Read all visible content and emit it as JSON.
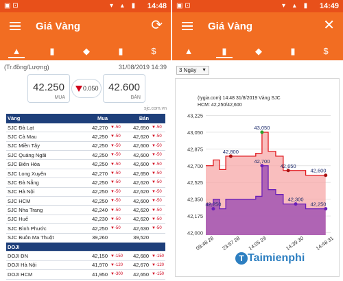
{
  "left": {
    "status": {
      "time": "14:48",
      "left_icons": "▣ ⊡",
      "right_icons": "▾ ▴ ▮"
    },
    "appbar": {
      "title": "Giá Vàng",
      "action_icon": "refresh-icon"
    },
    "tabs": [
      "gold-bars-icon",
      "chart-icon",
      "coin-pile-icon",
      "bar-chart-up-icon",
      "dollar-coins-icon"
    ],
    "unit_label": "(Tr.đồng/Lượng)",
    "timestamp": "31/08/2019 14:39",
    "summary": {
      "buy": "42.250",
      "buy_label": "MUA",
      "change": "0.050",
      "sell": "42.600",
      "sell_label": "BÁN"
    },
    "source": "sjc.com.vn",
    "table": {
      "headers": [
        "Vàng",
        "Mua",
        "Bán"
      ],
      "groups": [
        {
          "name": "",
          "rows": [
            {
              "name": "SJC Đà Lạt",
              "buy": "42,270",
              "buy_chg": "-50",
              "sell": "42,650",
              "sell_chg": "-50"
            },
            {
              "name": "SJC Cà Mau",
              "buy": "42,250",
              "buy_chg": "-50",
              "sell": "42,620",
              "sell_chg": "-50"
            },
            {
              "name": "SJC Miền Tây",
              "buy": "42,250",
              "buy_chg": "-50",
              "sell": "42,600",
              "sell_chg": "-50"
            },
            {
              "name": "SJC Quảng Ngãi",
              "buy": "42,250",
              "buy_chg": "-50",
              "sell": "42,600",
              "sell_chg": "-50"
            },
            {
              "name": "SJC Biên Hòa",
              "buy": "42,250",
              "buy_chg": "-50",
              "sell": "42,600",
              "sell_chg": "-50"
            },
            {
              "name": "SJC Long Xuyên",
              "buy": "42,270",
              "buy_chg": "-50",
              "sell": "42,650",
              "sell_chg": "-50"
            },
            {
              "name": "SJC Đà Nẵng",
              "buy": "42,250",
              "buy_chg": "-50",
              "sell": "42,620",
              "sell_chg": "-50"
            },
            {
              "name": "SJC Hà Nội",
              "buy": "42,250",
              "buy_chg": "-50",
              "sell": "42,620",
              "sell_chg": "-50"
            },
            {
              "name": "SJC HCM",
              "buy": "42,250",
              "buy_chg": "-50",
              "sell": "42,600",
              "sell_chg": "-50"
            },
            {
              "name": "SJC Nha Trang",
              "buy": "42,240",
              "buy_chg": "-50",
              "sell": "42,620",
              "sell_chg": "-50"
            },
            {
              "name": "SJC Huế",
              "buy": "42,230",
              "buy_chg": "-50",
              "sell": "42,620",
              "sell_chg": "-50"
            },
            {
              "name": "SJC Bình Phước",
              "buy": "42,250",
              "buy_chg": "-50",
              "sell": "42,630",
              "sell_chg": "-50"
            },
            {
              "name": "SJC Buôn Ma Thuột",
              "buy": "39,260",
              "buy_chg": "",
              "sell": "39,520",
              "sell_chg": ""
            }
          ]
        },
        {
          "name": "DOJI",
          "rows": [
            {
              "name": "DOJI ĐN",
              "buy": "42,150",
              "buy_chg": "-150",
              "sell": "42,680",
              "sell_chg": "-150"
            },
            {
              "name": "DOJI Hà Nội",
              "buy": "41,970",
              "buy_chg": "-120",
              "sell": "42,670",
              "sell_chg": "-120"
            },
            {
              "name": "DOJI HCM",
              "buy": "41,950",
              "buy_chg": "-300",
              "sell": "42,650",
              "sell_chg": "-150"
            }
          ]
        }
      ]
    }
  },
  "right": {
    "status": {
      "time": "14:49",
      "left_icons": "▣ ⊡",
      "right_icons": "▾ ▴ ▮"
    },
    "appbar": {
      "title": "Giá Vàng",
      "action_icon": "tools-icon"
    },
    "tabs": [
      "gold-bars-icon",
      "chart-icon",
      "coin-pile-icon",
      "bar-chart-up-icon",
      "dollar-coins-icon"
    ],
    "range_select": "3 Ngày",
    "chart_data": {
      "type": "area",
      "header_line1": "(tygia.com) 14:48 31/8/2019   Vàng SJC",
      "header_line2": "HCM: 42,250/42,600",
      "ylim": [
        41975,
        43250
      ],
      "y_ticks": [
        "43,225",
        "43,050",
        "42,875",
        "42,700",
        "42,525",
        "42,350",
        "42,175",
        "42,000"
      ],
      "y_tick_values": [
        43225,
        43050,
        42875,
        42700,
        42525,
        42350,
        42175,
        42000
      ],
      "x_ticks": [
        "09:48 28",
        "23:57 28",
        "14:05 29",
        "14:39 30",
        "14:48 31"
      ],
      "x_tick_values": [
        0,
        0.21,
        0.42,
        0.72,
        0.96
      ],
      "series": [
        {
          "name": "",
          "color": "#e0191e",
          "fill": "#f7a8a8",
          "x": [
            0,
            0.06,
            0.11,
            0.16,
            0.2,
            0.25,
            0.3,
            0.36,
            0.4,
            0.45,
            0.5,
            0.56,
            0.62,
            0.66,
            0.72,
            0.8,
            0.88,
            0.96
          ],
          "y": [
            42700,
            42760,
            42660,
            42800,
            42800,
            42800,
            42800,
            42800,
            42830,
            43050,
            42850,
            42800,
            42650,
            42650,
            42650,
            42600,
            42600,
            42600
          ]
        },
        {
          "name": "",
          "color": "#6a1fb8",
          "fill": "#a65ab2",
          "x": [
            0,
            0.06,
            0.11,
            0.16,
            0.2,
            0.25,
            0.3,
            0.36,
            0.4,
            0.45,
            0.5,
            0.56,
            0.62,
            0.66,
            0.72,
            0.8,
            0.88,
            0.96
          ],
          "y": [
            42300,
            42350,
            42250,
            42350,
            42350,
            42350,
            42350,
            42350,
            42380,
            42700,
            42450,
            42400,
            42300,
            42300,
            42300,
            42250,
            42250,
            42250
          ]
        }
      ],
      "data_labels": [
        {
          "text": "43,050",
          "x": 0.45,
          "y": 43050,
          "series": 0
        },
        {
          "text": "42,800",
          "x": 0.2,
          "y": 42800,
          "series": 0
        },
        {
          "text": "42,700",
          "x": 0.45,
          "y": 42700,
          "series": 1
        },
        {
          "text": "42,650",
          "x": 0.66,
          "y": 42650,
          "series": 0
        },
        {
          "text": "42,600",
          "x": 0.96,
          "y": 42600,
          "series": 0
        },
        {
          "text": "42,250",
          "x": 0.06,
          "y": 42250,
          "series": 1
        },
        {
          "text": "42,300",
          "x": 0.72,
          "y": 42300,
          "series": 1
        },
        {
          "text": "42,250",
          "x": 0.96,
          "y": 42250,
          "series": 1
        }
      ]
    },
    "watermark": "Taimienphi",
    "watermark_logo": "T"
  }
}
